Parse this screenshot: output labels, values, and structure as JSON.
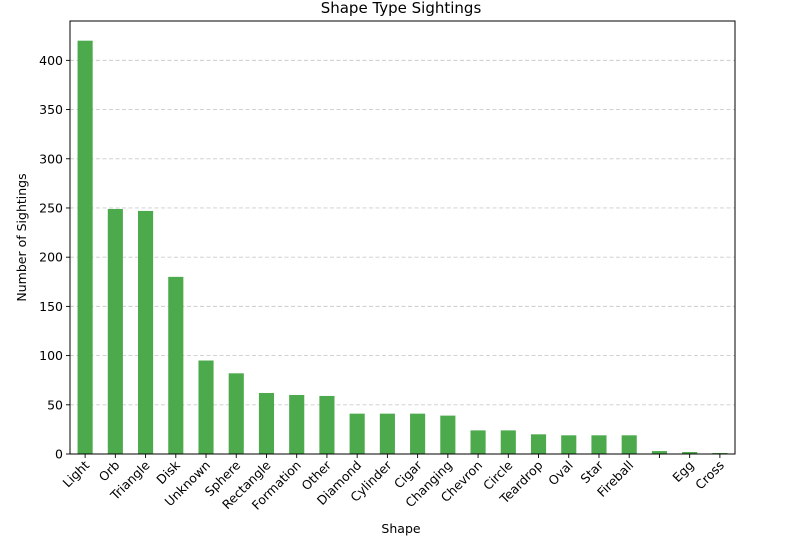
{
  "chart_data": {
    "type": "bar",
    "title": "Shape Type Sightings",
    "xlabel": "Shape",
    "ylabel": "Number of Sightings",
    "categories": [
      "Light",
      "Orb",
      "Triangle",
      "Disk",
      "Unknown",
      "Sphere",
      "Rectangle",
      "Formation",
      "Other",
      "Diamond",
      "Cylinder",
      "Cigar",
      "Changing",
      "Chevron",
      "Circle",
      "Teardrop",
      "Oval",
      "Star",
      "Fireball",
      "",
      "Egg",
      "Cross"
    ],
    "values": [
      420,
      249,
      247,
      180,
      95,
      82,
      62,
      60,
      59,
      41,
      41,
      41,
      39,
      24,
      24,
      20,
      19,
      19,
      19,
      3,
      2,
      1
    ],
    "ylim": [
      0,
      440
    ],
    "yticks": [
      0,
      50,
      100,
      150,
      200,
      250,
      300,
      350,
      400
    ],
    "grid": "y-dashed",
    "bar_color": "#4caa4c",
    "grid_color": "#cccccc"
  }
}
